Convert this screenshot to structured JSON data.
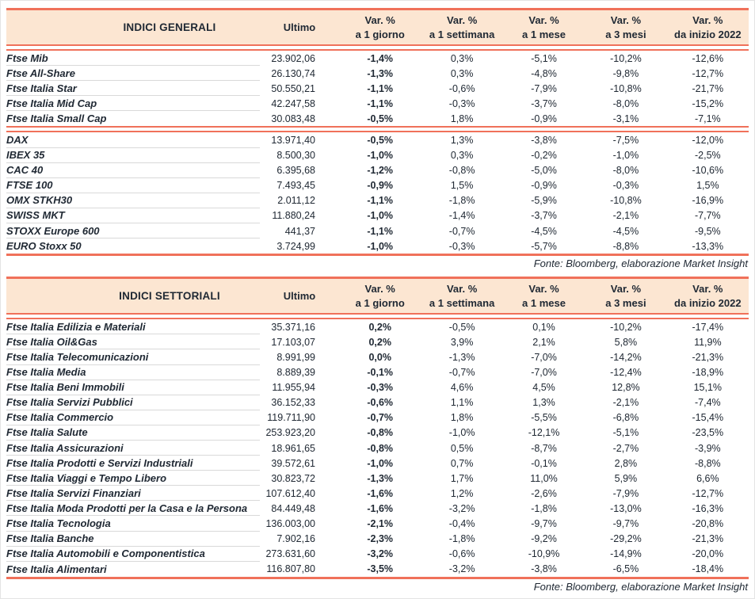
{
  "colors": {
    "accent": "#f0715a",
    "header_bg": "#fce6d2",
    "highlight": "#fcebdd",
    "text": "#202934",
    "divider": "#d9d9d9",
    "frame": "#e4e4e4"
  },
  "tables": [
    {
      "title": "INDICI GENERALI",
      "ultimo_label": "Ultimo",
      "var_columns": [
        {
          "line1": "Var. %",
          "line2": "a 1 giorno"
        },
        {
          "line1": "Var. %",
          "line2": "a 1 settimana"
        },
        {
          "line1": "Var. %",
          "line2": "a 1 mese"
        },
        {
          "line1": "Var. %",
          "line2": "a 3 mesi"
        },
        {
          "line1": "Var. %",
          "line2": "da inizio 2022"
        }
      ],
      "groups": [
        {
          "rows": [
            {
              "name": "Ftse Mib",
              "ultimo": "23.902,06",
              "vars": [
                "-1,4%",
                "0,3%",
                "-5,1%",
                "-10,2%",
                "-12,6%"
              ]
            },
            {
              "name": "Ftse All-Share",
              "ultimo": "26.130,74",
              "vars": [
                "-1,3%",
                "0,3%",
                "-4,8%",
                "-9,8%",
                "-12,7%"
              ]
            },
            {
              "name": "Ftse Italia Star",
              "ultimo": "50.550,21",
              "vars": [
                "-1,1%",
                "-0,6%",
                "-7,9%",
                "-10,8%",
                "-21,7%"
              ]
            },
            {
              "name": "Ftse Italia Mid Cap",
              "ultimo": "42.247,58",
              "vars": [
                "-1,1%",
                "-0,3%",
                "-3,7%",
                "-8,0%",
                "-15,2%"
              ]
            },
            {
              "name": "Ftse Italia Small Cap",
              "ultimo": "30.083,48",
              "vars": [
                "-0,5%",
                "1,8%",
                "-0,9%",
                "-3,1%",
                "-7,1%"
              ]
            }
          ]
        },
        {
          "rows": [
            {
              "name": "DAX",
              "ultimo": "13.971,40",
              "vars": [
                "-0,5%",
                "1,3%",
                "-3,8%",
                "-7,5%",
                "-12,0%"
              ]
            },
            {
              "name": "IBEX 35",
              "ultimo": "8.500,30",
              "vars": [
                "-1,0%",
                "0,3%",
                "-0,2%",
                "-1,0%",
                "-2,5%"
              ]
            },
            {
              "name": "CAC 40",
              "ultimo": "6.395,68",
              "vars": [
                "-1,2%",
                "-0,8%",
                "-5,0%",
                "-8,0%",
                "-10,6%"
              ]
            },
            {
              "name": "FTSE 100",
              "ultimo": "7.493,45",
              "vars": [
                "-0,9%",
                "1,5%",
                "-0,9%",
                "-0,3%",
                "1,5%"
              ]
            },
            {
              "name": "OMX STKH30",
              "ultimo": "2.011,12",
              "vars": [
                "-1,1%",
                "-1,8%",
                "-5,9%",
                "-10,8%",
                "-16,9%"
              ]
            },
            {
              "name": "SWISS MKT",
              "ultimo": "11.880,24",
              "vars": [
                "-1,0%",
                "-1,4%",
                "-3,7%",
                "-2,1%",
                "-7,7%"
              ]
            },
            {
              "name": "STOXX Europe 600",
              "ultimo": "441,37",
              "vars": [
                "-1,1%",
                "-0,7%",
                "-4,5%",
                "-4,5%",
                "-9,5%"
              ]
            },
            {
              "name": "EURO Stoxx 50",
              "ultimo": "3.724,99",
              "vars": [
                "-1,0%",
                "-0,3%",
                "-5,7%",
                "-8,8%",
                "-13,3%"
              ]
            }
          ]
        }
      ],
      "source": "Fonte: Bloomberg, elaborazione Market Insight"
    },
    {
      "title": "INDICI SETTORIALI",
      "ultimo_label": "Ultimo",
      "var_columns": [
        {
          "line1": "Var. %",
          "line2": "a 1 giorno"
        },
        {
          "line1": "Var. %",
          "line2": "a 1 settimana"
        },
        {
          "line1": "Var. %",
          "line2": "a 1 mese"
        },
        {
          "line1": "Var. %",
          "line2": "a 3 mesi"
        },
        {
          "line1": "Var. %",
          "line2": "da inizio 2022"
        }
      ],
      "groups": [
        {
          "rows": [
            {
              "name": "Ftse Italia Edilizia e Materiali",
              "ultimo": "35.371,16",
              "vars": [
                "0,2%",
                "-0,5%",
                "0,1%",
                "-10,2%",
                "-17,4%"
              ]
            },
            {
              "name": "Ftse Italia Oil&Gas",
              "ultimo": "17.103,07",
              "vars": [
                "0,2%",
                "3,9%",
                "2,1%",
                "5,8%",
                "11,9%"
              ]
            },
            {
              "name": "Ftse Italia Telecomunicazioni",
              "ultimo": "8.991,99",
              "vars": [
                "0,0%",
                "-1,3%",
                "-7,0%",
                "-14,2%",
                "-21,3%"
              ]
            },
            {
              "name": "Ftse Italia Media",
              "ultimo": "8.889,39",
              "vars": [
                "-0,1%",
                "-0,7%",
                "-7,0%",
                "-12,4%",
                "-18,9%"
              ]
            },
            {
              "name": "Ftse Italia Beni Immobili",
              "ultimo": "11.955,94",
              "vars": [
                "-0,3%",
                "4,6%",
                "4,5%",
                "12,8%",
                "15,1%"
              ]
            },
            {
              "name": "Ftse Italia Servizi Pubblici",
              "ultimo": "36.152,33",
              "vars": [
                "-0,6%",
                "1,1%",
                "1,3%",
                "-2,1%",
                "-7,4%"
              ]
            },
            {
              "name": "Ftse Italia Commercio",
              "ultimo": "119.711,90",
              "vars": [
                "-0,7%",
                "1,8%",
                "-5,5%",
                "-6,8%",
                "-15,4%"
              ]
            },
            {
              "name": "Ftse Italia Salute",
              "ultimo": "253.923,20",
              "vars": [
                "-0,8%",
                "-1,0%",
                "-12,1%",
                "-5,1%",
                "-23,5%"
              ]
            },
            {
              "name": "Ftse Italia Assicurazioni",
              "ultimo": "18.961,65",
              "vars": [
                "-0,8%",
                "0,5%",
                "-8,7%",
                "-2,7%",
                "-3,9%"
              ]
            },
            {
              "name": "Ftse Italia Prodotti e Servizi Industriali",
              "ultimo": "39.572,61",
              "vars": [
                "-1,0%",
                "0,7%",
                "-0,1%",
                "2,8%",
                "-8,8%"
              ]
            },
            {
              "name": "Ftse Italia Viaggi e Tempo Libero",
              "ultimo": "30.823,72",
              "vars": [
                "-1,3%",
                "1,7%",
                "11,0%",
                "5,9%",
                "6,6%"
              ]
            },
            {
              "name": "Ftse Italia Servizi Finanziari",
              "ultimo": "107.612,40",
              "vars": [
                "-1,6%",
                "1,2%",
                "-2,6%",
                "-7,9%",
                "-12,7%"
              ]
            },
            {
              "name": "Ftse Italia Moda Prodotti per la Casa e la Persona",
              "ultimo": "84.449,48",
              "vars": [
                "-1,6%",
                "-3,2%",
                "-1,8%",
                "-13,0%",
                "-16,3%"
              ]
            },
            {
              "name": "Ftse Italia Tecnologia",
              "ultimo": "136.003,00",
              "vars": [
                "-2,1%",
                "-0,4%",
                "-9,7%",
                "-9,7%",
                "-20,8%"
              ]
            },
            {
              "name": "Ftse Italia Banche",
              "ultimo": "7.902,16",
              "vars": [
                "-2,3%",
                "-1,8%",
                "-9,2%",
                "-29,2%",
                "-21,3%"
              ]
            },
            {
              "name": "Ftse Italia Automobili e Componentistica",
              "ultimo": "273.631,60",
              "vars": [
                "-3,2%",
                "-0,6%",
                "-10,9%",
                "-14,9%",
                "-20,0%"
              ]
            },
            {
              "name": "Ftse Italia Alimentari",
              "ultimo": "116.807,80",
              "vars": [
                "-3,5%",
                "-3,2%",
                "-3,8%",
                "-6,5%",
                "-18,4%"
              ]
            }
          ]
        }
      ],
      "source": "Fonte: Bloomberg, elaborazione Market Insight"
    }
  ]
}
